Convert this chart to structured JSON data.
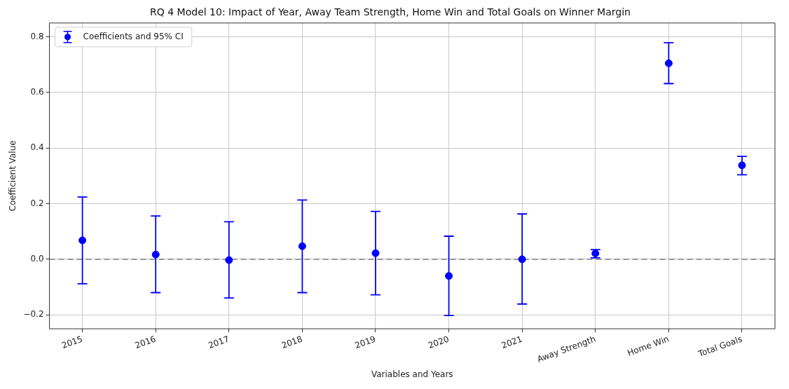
{
  "chart_data": {
    "type": "scatter",
    "title": "RQ 4 Model 10: Impact of Year, Away Team Strength, Home Win and Total Goals on Winner Margin",
    "xlabel": "Variables and Years",
    "ylabel": "Coefficient Value",
    "categories": [
      "2015",
      "2016",
      "2017",
      "2018",
      "2019",
      "2020",
      "2021",
      "Away Strength",
      "Home Win",
      "Total Goals"
    ],
    "series": [
      {
        "name": "Coefficients and 95% CI",
        "color": "#0000ff",
        "values": [
          0.068,
          0.017,
          -0.003,
          0.047,
          0.022,
          -0.06,
          0.0,
          0.021,
          0.705,
          0.338
        ],
        "errors": [
          [
            -0.088,
            0.224
          ],
          [
            -0.12,
            0.156
          ],
          [
            -0.139,
            0.135
          ],
          [
            -0.12,
            0.213
          ],
          [
            -0.128,
            0.172
          ],
          [
            -0.202,
            0.083
          ],
          [
            -0.161,
            0.163
          ],
          [
            0.005,
            0.035
          ],
          [
            0.632,
            0.779
          ],
          [
            0.304,
            0.37
          ]
        ]
      }
    ],
    "ylim": [
      -0.25,
      0.85
    ],
    "yticks": [
      {
        "value": -0.2,
        "label": "−0.2"
      },
      {
        "value": 0,
        "label": "0.0"
      },
      {
        "value": 0.2,
        "label": "0.2"
      },
      {
        "value": 0.4,
        "label": "0.4"
      },
      {
        "value": 0.6,
        "label": "0.6"
      },
      {
        "value": 0.8,
        "label": "0.8"
      }
    ],
    "ref_lines": [
      {
        "axis": "y",
        "value": 0,
        "color": "#808080",
        "line_style": "dashed"
      }
    ],
    "grid": true,
    "legend": "top left",
    "marker": "circle"
  }
}
